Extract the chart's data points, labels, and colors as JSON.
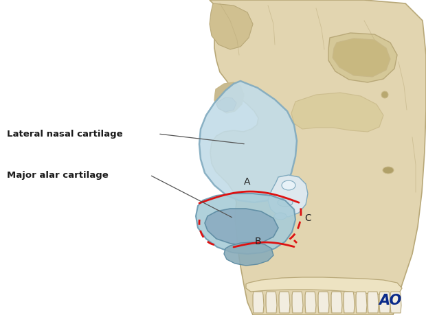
{
  "bg_color": "#ffffff",
  "bone_fill": "#e2d5b0",
  "bone_edge": "#b8a878",
  "bone_dark": "#c8b888",
  "bone_light": "#ede3c2",
  "cartilage_lat_fill": "#c2dce8",
  "cartilage_lat_edge": "#80aabf",
  "cartilage_alar_fill": "#a8ccd8",
  "cartilage_alar_edge": "#6898b0",
  "nose_fill": "#d0e4ee",
  "nose_edge": "#7090a8",
  "white_area_fill": "#e8f0f5",
  "gray_cartilage": "#b8cdd8",
  "red_color": "#dd1111",
  "text_color": "#1a1a1a",
  "line_color": "#555555",
  "ao_color": "#0a2a8a",
  "label1": "Lateral nasal cartilage",
  "label2": "Major alar cartilage",
  "label_A": "A",
  "label_B": "B",
  "label_C": "C"
}
